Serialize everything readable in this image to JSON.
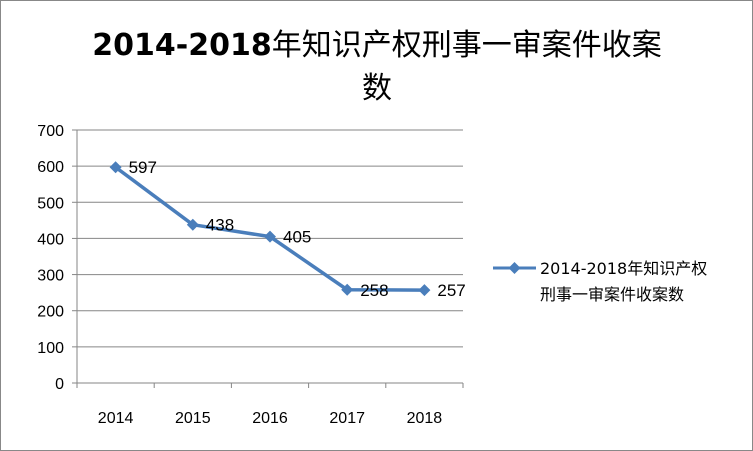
{
  "chart_data": {
    "type": "line",
    "title_part1": "2014-2018",
    "title_part2": "年知识产权刑事一审案件收案",
    "title_part3": "数",
    "categories": [
      "2014",
      "2015",
      "2016",
      "2017",
      "2018"
    ],
    "series": [
      {
        "name_line1": "2014-2018年知识产权",
        "name_line2": "刑事一审案件收案数",
        "values": [
          597,
          438,
          405,
          258,
          257
        ],
        "color": "#4A7EBB"
      }
    ],
    "ylim": [
      0,
      700
    ],
    "yticks": [
      "0",
      "100",
      "200",
      "300",
      "400",
      "500",
      "600",
      "700"
    ],
    "grid": true,
    "legend_position": "right",
    "gridline_color": "#868686",
    "axis_color": "#868686"
  }
}
